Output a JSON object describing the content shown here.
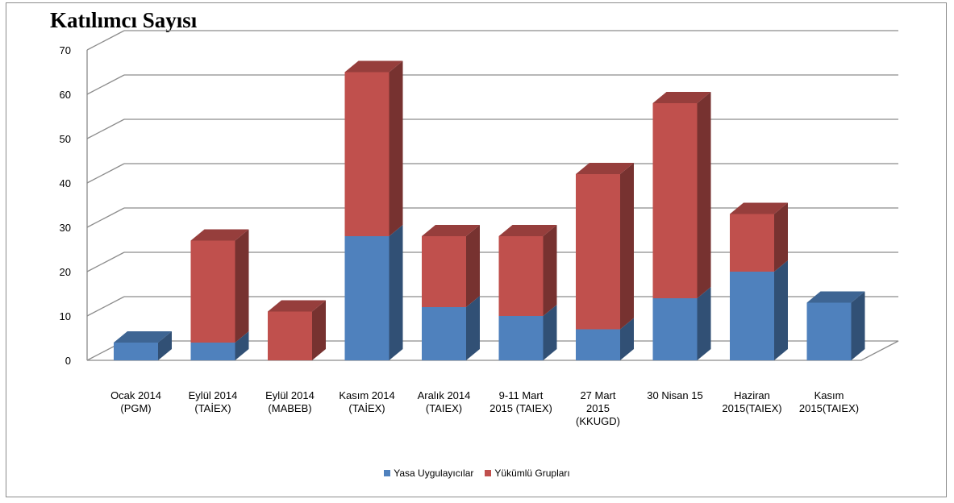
{
  "chart_data": {
    "type": "bar",
    "stacked": true,
    "title": "Katılımcı Sayısı",
    "categories": [
      [
        "Ocak 2014",
        "(PGM)"
      ],
      [
        "Eylül 2014",
        "(TAİEX)"
      ],
      [
        "Eylül 2014",
        "(MABEB)"
      ],
      [
        "Kasım 2014",
        "(TAİEX)"
      ],
      [
        "Aralık 2014",
        "(TAIEX)"
      ],
      [
        "9-11 Mart",
        "2015 (TAIEX)"
      ],
      [
        "27 Mart",
        "2015",
        "(KKUGD)"
      ],
      [
        "30 Nisan 15"
      ],
      [
        "Haziran",
        "2015(TAIEX)"
      ],
      [
        "Kasım",
        "2015(TAIEX)"
      ]
    ],
    "series": [
      {
        "name": "Yasa Uygulayıcılar",
        "color": "#4f81bd",
        "values": [
          4,
          4,
          0,
          28,
          12,
          10,
          7,
          14,
          20,
          13
        ]
      },
      {
        "name": "Yükümlü Grupları",
        "color": "#c0504d",
        "values": [
          0,
          23,
          11,
          37,
          16,
          18,
          35,
          44,
          13,
          0
        ]
      }
    ],
    "ylim": [
      0,
      70
    ],
    "yticks": [
      0,
      10,
      20,
      30,
      40,
      50,
      60,
      70
    ],
    "grid": true,
    "legend_position": "bottom"
  }
}
